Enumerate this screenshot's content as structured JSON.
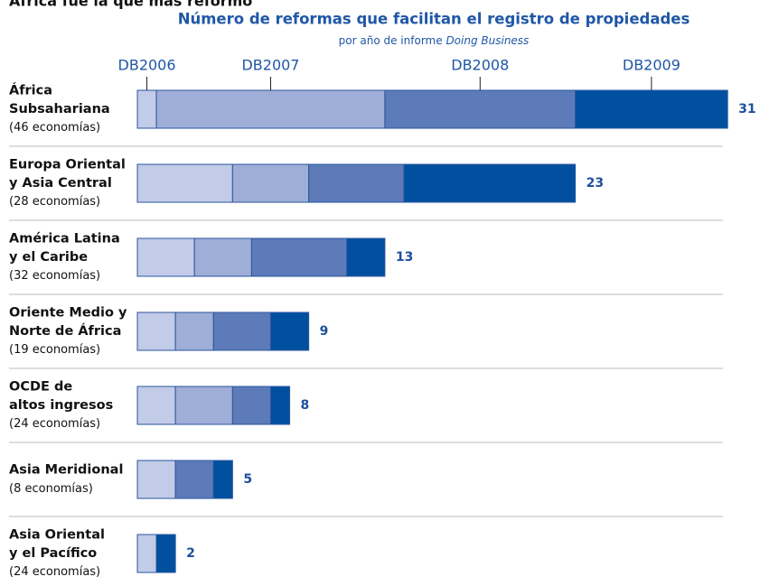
{
  "chart_data": {
    "type": "stacked-bar-horizontal",
    "header": "África fue la que más reformó",
    "title": "Número de reformas que facilitan el registro de propiedades",
    "subtitle": "por año de informe",
    "subtitle_italic": "Doing Business",
    "categories": [
      [
        "África",
        "Subsahariana"
      ],
      [
        "Europa Oriental",
        "y Asia Central"
      ],
      [
        "América Latina",
        "y el Caribe"
      ],
      [
        "Oriente Medio y",
        "Norte de África"
      ],
      [
        "OCDE de",
        "altos ingresos"
      ],
      [
        "Asia Meridional"
      ],
      [
        "Asia Oriental",
        "y el Pacífico"
      ]
    ],
    "economies": [
      "(46 economías)",
      "(28 economías)",
      "(32 economías)",
      "(19 economías)",
      "(24 economías)",
      "(8 economías)",
      "(24 economías)"
    ],
    "series": [
      {
        "name": "DB2006",
        "color": "#c2cbe7",
        "values": [
          1,
          5,
          3,
          2,
          2,
          2,
          1
        ]
      },
      {
        "name": "DB2007",
        "color": "#9eaed7",
        "values": [
          12,
          4,
          3,
          2,
          3,
          0,
          0
        ]
      },
      {
        "name": "DB2008",
        "color": "#5c7bb8",
        "values": [
          10,
          5,
          5,
          3,
          2,
          2,
          0
        ]
      },
      {
        "name": "DB2009",
        "color": "#00509f",
        "values": [
          8,
          9,
          2,
          2,
          1,
          1,
          1
        ]
      }
    ],
    "totals": [
      31,
      23,
      13,
      9,
      8,
      5,
      2
    ]
  }
}
